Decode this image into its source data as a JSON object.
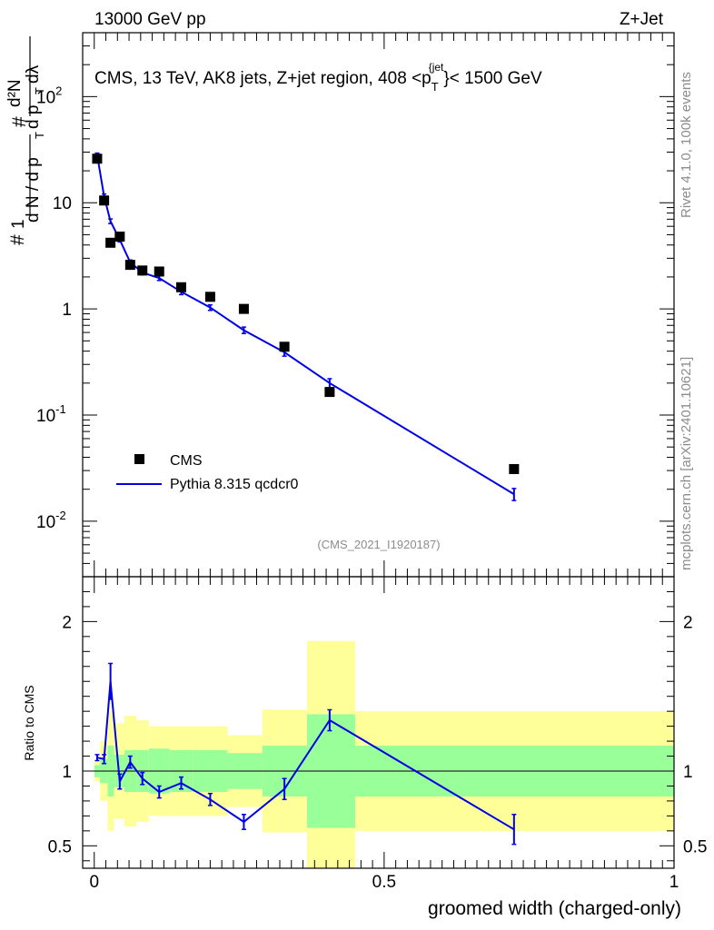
{
  "header": {
    "energy_label": "13000 GeV pp",
    "process_label": "Z+Jet"
  },
  "side_labels": {
    "rivet": "Rivet 4.1.0,  100k events",
    "mcplots": "mcplots.cern.ch [arXiv:2401.10621]"
  },
  "chart_data": [
    {
      "type": "scatter",
      "title": "CMS, 13 TeV, AK8 jets, Z+jet region, 408 <p_T^{jet}< 1500 GeV",
      "title_parts": {
        "main": "CMS, 13 TeV, AK8 jets, Z+jet region, 408 <p",
        "sub": "T",
        "sup": "{jet",
        "end": "}< 1500 GeV"
      },
      "ylabel_parts": {
        "hash": "#",
        "one": "1",
        "dN": "d N / d p",
        "dN_sub": "T",
        "hash2": "#",
        "d2N": "d²N",
        "dpt_dl": "d p",
        "dpt_sub": "T",
        "dlambda": "dλ"
      },
      "yscale": "log",
      "ylim": [
        0.003,
        400
      ],
      "xlim": [
        -0.02,
        1.0
      ],
      "y_ticks": [
        {
          "value": 0.01,
          "label_base": "10",
          "label_exp": "-2"
        },
        {
          "value": 0.1,
          "label_base": "10",
          "label_exp": "-1"
        },
        {
          "value": 1,
          "label_base": "1",
          "label_exp": ""
        },
        {
          "value": 10,
          "label_base": "10",
          "label_exp": ""
        },
        {
          "value": 100,
          "label_base": "10",
          "label_exp": "2"
        }
      ],
      "watermark": "(CMS_2021_I1920187)",
      "legend": {
        "placement": "bottom-left",
        "entries": [
          "CMS",
          "Pythia 8.315 qcdcr0"
        ]
      },
      "series": [
        {
          "name": "CMS",
          "style": "square-markers",
          "color": "#000000",
          "x": [
            0.005,
            0.017,
            0.028,
            0.044,
            0.062,
            0.083,
            0.112,
            0.15,
            0.2,
            0.258,
            0.328,
            0.406,
            0.724
          ],
          "y": [
            26,
            10.5,
            4.2,
            4.8,
            2.6,
            2.3,
            2.25,
            1.6,
            1.3,
            1.0,
            0.44,
            0.165,
            0.031
          ]
        },
        {
          "name": "Pythia 8.315 qcdcr0",
          "style": "line-with-errorbars",
          "color": "#0000e6",
          "x": [
            0.005,
            0.017,
            0.028,
            0.044,
            0.062,
            0.083,
            0.112,
            0.15,
            0.2,
            0.258,
            0.328,
            0.406,
            0.724
          ],
          "y": [
            28,
            11.5,
            6.7,
            4.5,
            2.75,
            2.2,
            1.95,
            1.45,
            1.03,
            0.63,
            0.39,
            0.2,
            0.018
          ],
          "err": [
            0.05,
            0.05,
            0.05,
            0.05,
            0.05,
            0.05,
            0.05,
            0.06,
            0.06,
            0.07,
            0.08,
            0.1,
            0.13
          ]
        }
      ]
    },
    {
      "type": "line",
      "ylabel": "Ratio to CMS",
      "xlabel": "groomed width (charged-only)",
      "ylim": [
        0.35,
        2.3
      ],
      "xlim": [
        -0.02,
        1.0
      ],
      "x_ticks": [
        {
          "value": 0,
          "label": "0"
        },
        {
          "value": 0.5,
          "label": "0.5"
        },
        {
          "value": 1,
          "label": "1"
        }
      ],
      "y_ticks": [
        {
          "value": 0.5,
          "label": "0.5"
        },
        {
          "value": 1,
          "label": "1"
        },
        {
          "value": 2,
          "label": "2"
        }
      ],
      "reference_line": 1,
      "bins": [
        0.0,
        0.01,
        0.023,
        0.034,
        0.052,
        0.073,
        0.094,
        0.13,
        0.17,
        0.23,
        0.29,
        0.367,
        0.45,
        1.0
      ],
      "band_inner": [
        [
          0.96,
          1.04
        ],
        [
          0.92,
          1.08
        ],
        [
          0.83,
          1.17
        ],
        [
          0.89,
          1.11
        ],
        [
          0.86,
          1.14
        ],
        [
          0.86,
          1.14
        ],
        [
          0.85,
          1.15
        ],
        [
          0.86,
          1.14
        ],
        [
          0.86,
          1.14
        ],
        [
          0.88,
          1.12
        ],
        [
          0.83,
          1.17
        ],
        [
          0.62,
          1.38
        ],
        [
          0.83,
          1.17
        ]
      ],
      "band_outer": [
        [
          0.93,
          1.07
        ],
        [
          0.8,
          1.2
        ],
        [
          0.6,
          1.4
        ],
        [
          0.68,
          1.32
        ],
        [
          0.63,
          1.37
        ],
        [
          0.66,
          1.34
        ],
        [
          0.7,
          1.3
        ],
        [
          0.7,
          1.3
        ],
        [
          0.7,
          1.3
        ],
        [
          0.76,
          1.24
        ],
        [
          0.59,
          1.41
        ],
        [
          0.35,
          1.87
        ],
        [
          0.6,
          1.4
        ]
      ],
      "series": [
        {
          "name": "Pythia 8.315 qcdcr0",
          "color": "#0000e6",
          "x": [
            0.005,
            0.017,
            0.028,
            0.044,
            0.062,
            0.083,
            0.112,
            0.15,
            0.2,
            0.258,
            0.328,
            0.406,
            0.724
          ],
          "y": [
            1.09,
            1.08,
            1.6,
            0.93,
            1.06,
            0.95,
            0.86,
            0.92,
            0.81,
            0.66,
            0.88,
            1.34,
            0.61
          ],
          "err": [
            0.02,
            0.03,
            0.12,
            0.05,
            0.04,
            0.04,
            0.04,
            0.04,
            0.04,
            0.05,
            0.07,
            0.07,
            0.1
          ]
        }
      ]
    }
  ]
}
